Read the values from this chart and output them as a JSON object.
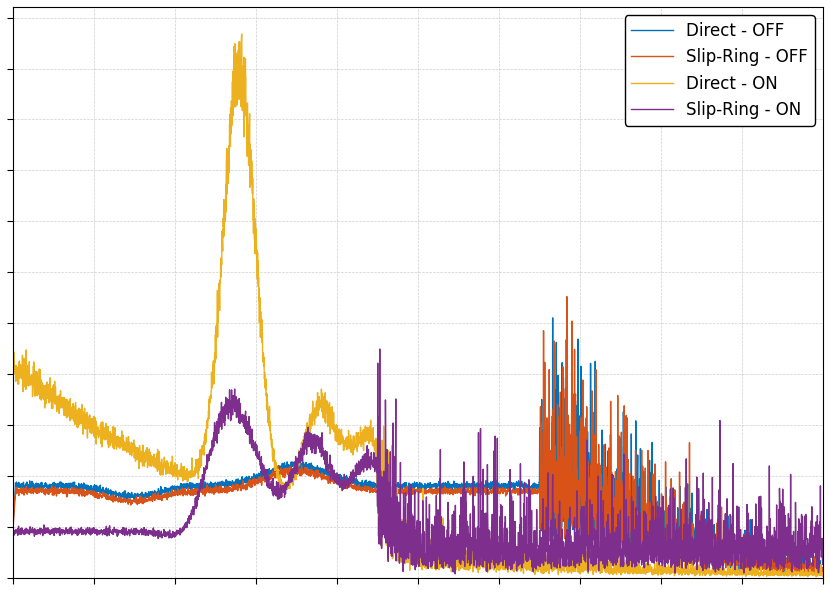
{
  "lines": [
    {
      "label": "Direct - OFF",
      "color": "#0072BD",
      "lw": 1.0
    },
    {
      "label": "Slip-Ring - OFF",
      "color": "#D95319",
      "lw": 1.0
    },
    {
      "label": "Direct - ON",
      "color": "#EDB120",
      "lw": 1.0
    },
    {
      "label": "Slip-Ring - ON",
      "color": "#7E2F8E",
      "lw": 1.0
    }
  ],
  "background_color": "#ffffff",
  "grid_color": "#bbbbbb",
  "legend_loc": "upper right",
  "figsize": [
    8.3,
    5.9
  ],
  "dpi": 100,
  "seed": 123
}
